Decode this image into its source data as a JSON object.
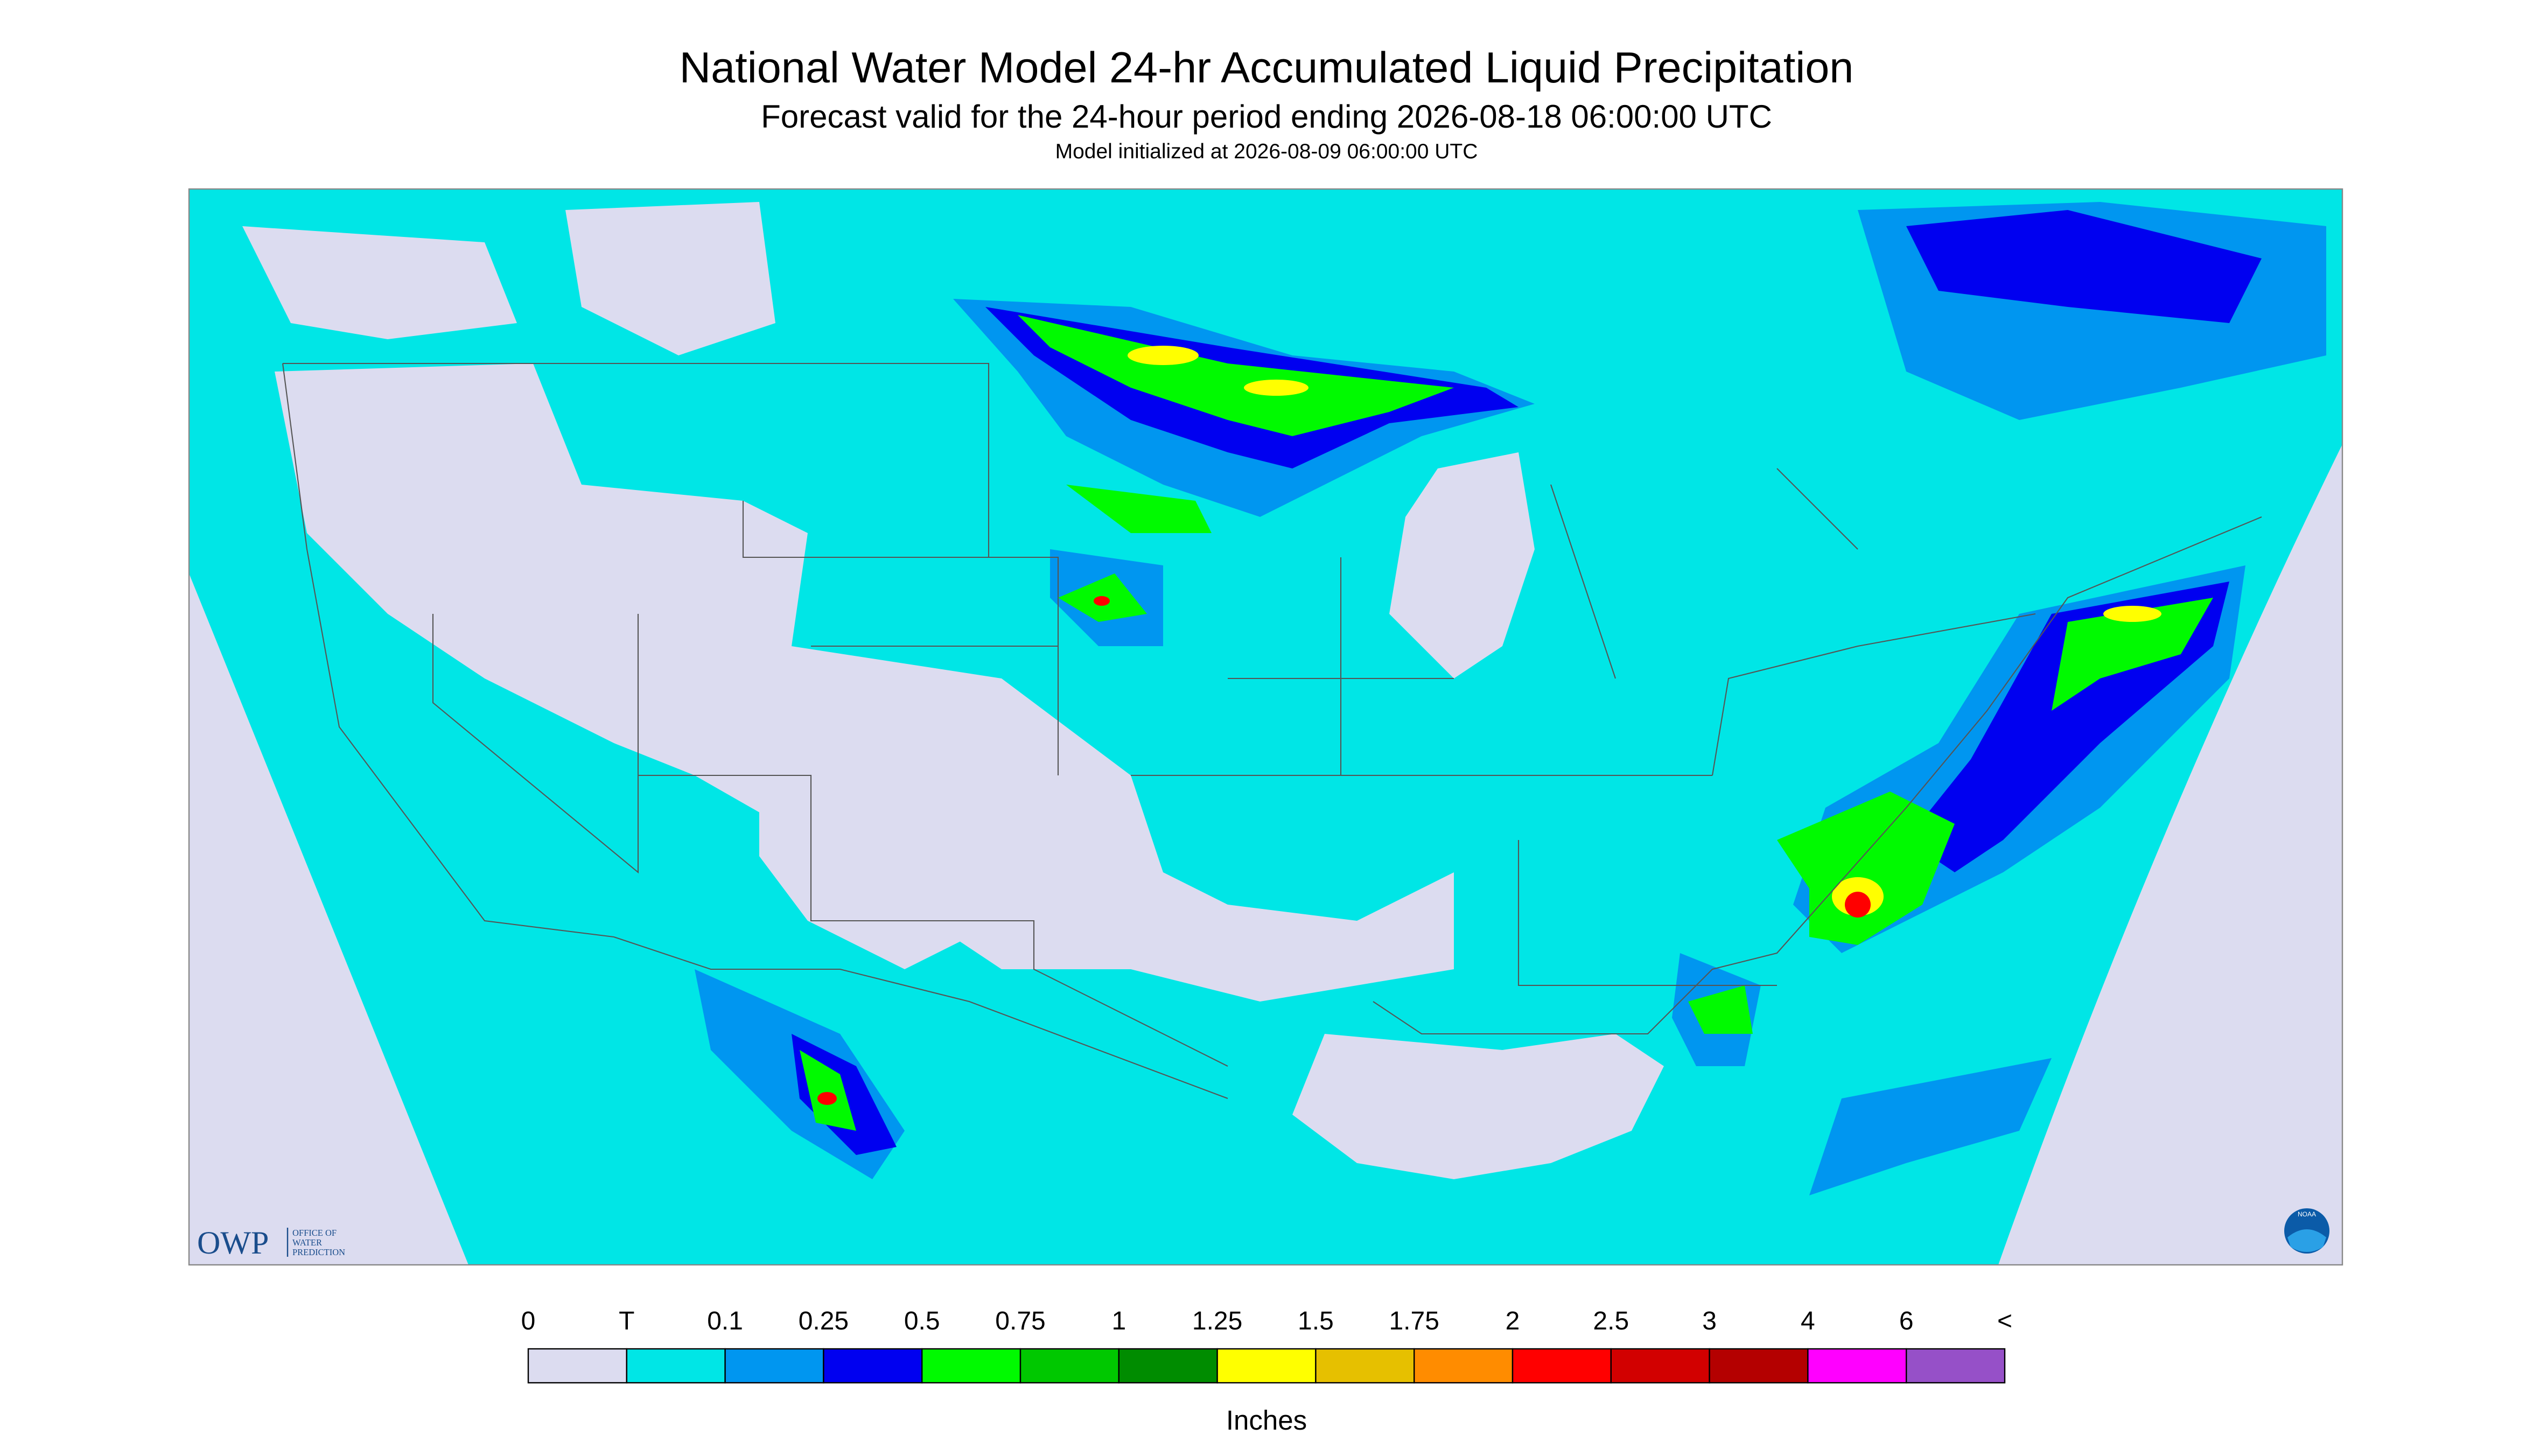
{
  "header": {
    "title": "National Water Model 24-hr Accumulated Liquid Precipitation",
    "subtitle": "Forecast valid for the 24-hour period ending 2026-08-18 06:00:00 UTC",
    "init": "Model initialized at 2026-08-09 06:00:00 UTC"
  },
  "legend": {
    "labels": [
      "0",
      "T",
      "0.1",
      "0.25",
      "0.5",
      "0.75",
      "1",
      "1.25",
      "1.5",
      "1.75",
      "2",
      "2.5",
      "3",
      "4",
      "6",
      "<"
    ],
    "colors": [
      "#dcdcf0",
      "#00e6e6",
      "#0096f0",
      "#0000f0",
      "#00fa00",
      "#00c800",
      "#008c00",
      "#ffff00",
      "#e6c000",
      "#ff8c00",
      "#ff0000",
      "#d20000",
      "#b40000",
      "#ff00ff",
      "#9650c8"
    ],
    "unit": "Inches"
  },
  "logo": {
    "acronym": "OWP",
    "name": [
      "OFFICE OF",
      "WATER",
      "PREDICTION"
    ]
  },
  "badge": "NOAA"
}
